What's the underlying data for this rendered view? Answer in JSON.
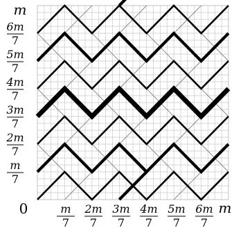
{
  "labels": {
    "origin": "0",
    "axis_end": "m",
    "numerators": [
      "m",
      "2m",
      "3m",
      "4m",
      "5m",
      "6m"
    ],
    "denominator": "7"
  },
  "diagram": {
    "divisions": 7,
    "fine_grid_per_division": 4,
    "medium_paths": [
      [
        [
          0,
          6
        ],
        [
          1,
          7
        ],
        [
          2,
          6
        ],
        [
          3,
          7
        ],
        [
          4,
          6
        ],
        [
          5,
          7
        ],
        [
          6,
          6
        ],
        [
          7,
          7
        ]
      ],
      [
        [
          0,
          4
        ],
        [
          1,
          5
        ],
        [
          2,
          4
        ],
        [
          3,
          5
        ],
        [
          4,
          4
        ],
        [
          5,
          5
        ],
        [
          6,
          4
        ],
        [
          7,
          5
        ]
      ],
      [
        [
          0,
          2
        ],
        [
          1,
          3
        ],
        [
          2,
          2
        ],
        [
          3,
          3
        ],
        [
          4,
          2
        ],
        [
          5,
          3
        ],
        [
          6,
          2
        ],
        [
          7,
          3
        ]
      ],
      [
        [
          0,
          0
        ],
        [
          1,
          1
        ],
        [
          2,
          0
        ],
        [
          3,
          1
        ],
        [
          4,
          0
        ],
        [
          5,
          1
        ],
        [
          6,
          0
        ],
        [
          7,
          1
        ]
      ]
    ],
    "bold_paths": [
      [
        [
          0,
          5
        ],
        [
          1,
          6
        ],
        [
          2,
          5
        ],
        [
          3,
          6
        ],
        [
          4,
          5
        ],
        [
          5,
          6
        ],
        [
          6,
          5
        ],
        [
          7,
          6
        ]
      ],
      [
        [
          0,
          1
        ],
        [
          1,
          2
        ],
        [
          2,
          1
        ],
        [
          3,
          2
        ],
        [
          4,
          1
        ],
        [
          5,
          2
        ],
        [
          6,
          1
        ],
        [
          7,
          2
        ]
      ],
      [
        [
          3,
          7
        ],
        [
          4,
          8
        ]
      ],
      [
        [
          3,
          6
        ],
        [
          4,
          5
        ]
      ],
      [
        [
          3,
          2
        ],
        [
          4,
          1
        ]
      ],
      [
        [
          3,
          0
        ],
        [
          4,
          1
        ]
      ]
    ],
    "heavy_path": [
      [
        0,
        3
      ],
      [
        1,
        4
      ],
      [
        2,
        3
      ],
      [
        3,
        4
      ],
      [
        4,
        3
      ],
      [
        5,
        4
      ],
      [
        6,
        3
      ],
      [
        7,
        4
      ]
    ]
  }
}
